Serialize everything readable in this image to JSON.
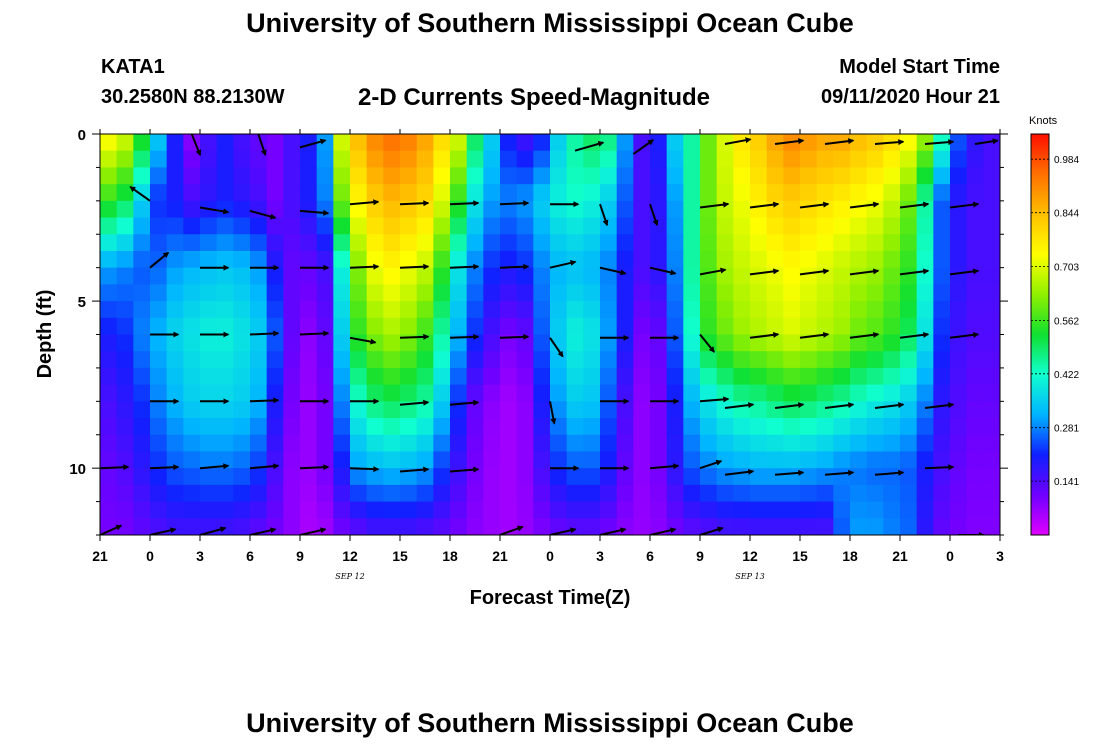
{
  "page": {
    "title": "University of Southern Mississippi Ocean Cube",
    "bottom_title": "University of Southern Mississippi Ocean Cube",
    "station": "KATA1",
    "coords": "30.2580N 88.2130W",
    "subtitle": "2-D Currents Speed-Magnitude",
    "model_start_label": "Model Start Time",
    "model_start_value": "09/11/2020 Hour 21"
  },
  "colors": {
    "ramp": [
      "#e000ff",
      "#7000ff",
      "#1020ff",
      "#00b4ff",
      "#10ffd0",
      "#10e030",
      "#90f000",
      "#ffff00",
      "#ffc000",
      "#ff7000",
      "#ff1000"
    ],
    "arrow": "#000000"
  },
  "chart_data": {
    "type": "heatmap",
    "title": "2-D Currents Speed-Magnitude",
    "xlabel": "Forecast Time(Z)",
    "ylabel": "Depth (ft)",
    "xlim": [
      0,
      54
    ],
    "ylim": [
      0,
      12
    ],
    "x_ticks": [
      {
        "x": 0,
        "label": "21"
      },
      {
        "x": 3,
        "label": "0"
      },
      {
        "x": 6,
        "label": "3"
      },
      {
        "x": 9,
        "label": "6"
      },
      {
        "x": 12,
        "label": "9"
      },
      {
        "x": 15,
        "label": "12"
      },
      {
        "x": 18,
        "label": "15"
      },
      {
        "x": 21,
        "label": "18"
      },
      {
        "x": 24,
        "label": "21"
      },
      {
        "x": 27,
        "label": "0"
      },
      {
        "x": 30,
        "label": "3"
      },
      {
        "x": 33,
        "label": "6"
      },
      {
        "x": 36,
        "label": "9"
      },
      {
        "x": 39,
        "label": "12"
      },
      {
        "x": 42,
        "label": "15"
      },
      {
        "x": 45,
        "label": "18"
      },
      {
        "x": 48,
        "label": "21"
      },
      {
        "x": 51,
        "label": "0"
      },
      {
        "x": 54,
        "label": "3"
      }
    ],
    "date_labels": [
      {
        "x": 15,
        "label": "SEP 12"
      },
      {
        "x": 39,
        "label": "SEP 13"
      }
    ],
    "y_ticks": [
      {
        "y": 0,
        "label": "0"
      },
      {
        "y": 5,
        "label": "5"
      },
      {
        "y": 10,
        "label": "10"
      }
    ],
    "colorbar": {
      "label": "Knots",
      "range": [
        0,
        1.05
      ],
      "ticks": [
        0.984,
        0.844,
        0.703,
        0.562,
        0.422,
        0.281,
        0.141
      ]
    },
    "depth_levels": [
      0,
      2,
      4,
      6,
      8,
      10,
      12
    ],
    "speed_profiles": {
      "hours": [
        0,
        1,
        2,
        3,
        4,
        5,
        6,
        7,
        8,
        9,
        10,
        11,
        12,
        13,
        14,
        15,
        16,
        17,
        18,
        19,
        20,
        21,
        22,
        23,
        24,
        25,
        26,
        27,
        28,
        29,
        30,
        31,
        32,
        33,
        34,
        35,
        36,
        37,
        38,
        39,
        40,
        41,
        42,
        43,
        44,
        45,
        46,
        47,
        48,
        49,
        50,
        51,
        52,
        53
      ],
      "knots_by_depth": [
        [
          0.75,
          0.7,
          0.55,
          0.35,
          0.2,
          0.08,
          0.15,
          0.2,
          0.15,
          0.12,
          0.1,
          0.15,
          0.2,
          0.3,
          0.7,
          0.85,
          0.92,
          0.95,
          0.93,
          0.88,
          0.8,
          0.7,
          0.5,
          0.35,
          0.2,
          0.15,
          0.2,
          0.35,
          0.45,
          0.5,
          0.48,
          0.3,
          0.15,
          0.2,
          0.35,
          0.45,
          0.6,
          0.7,
          0.78,
          0.82,
          0.88,
          0.92,
          0.9,
          0.88,
          0.88,
          0.85,
          0.83,
          0.8,
          0.75,
          0.65,
          0.45,
          0.25,
          0.18,
          0.15
        ],
        [
          0.55,
          0.5,
          0.35,
          0.22,
          0.2,
          0.15,
          0.18,
          0.2,
          0.18,
          0.15,
          0.1,
          0.15,
          0.2,
          0.28,
          0.6,
          0.75,
          0.82,
          0.85,
          0.83,
          0.8,
          0.7,
          0.55,
          0.38,
          0.3,
          0.28,
          0.3,
          0.35,
          0.4,
          0.42,
          0.4,
          0.35,
          0.25,
          0.15,
          0.18,
          0.3,
          0.45,
          0.6,
          0.68,
          0.72,
          0.76,
          0.8,
          0.82,
          0.8,
          0.78,
          0.76,
          0.74,
          0.72,
          0.68,
          0.6,
          0.45,
          0.25,
          0.18,
          0.15,
          0.15
        ],
        [
          0.3,
          0.28,
          0.25,
          0.26,
          0.3,
          0.32,
          0.33,
          0.34,
          0.33,
          0.3,
          0.2,
          0.12,
          0.12,
          0.15,
          0.4,
          0.62,
          0.72,
          0.75,
          0.72,
          0.68,
          0.55,
          0.38,
          0.28,
          0.22,
          0.2,
          0.22,
          0.28,
          0.32,
          0.33,
          0.32,
          0.28,
          0.2,
          0.15,
          0.18,
          0.28,
          0.45,
          0.58,
          0.65,
          0.68,
          0.7,
          0.72,
          0.74,
          0.72,
          0.7,
          0.68,
          0.66,
          0.64,
          0.6,
          0.55,
          0.42,
          0.25,
          0.18,
          0.15,
          0.15
        ],
        [
          0.2,
          0.22,
          0.28,
          0.32,
          0.36,
          0.38,
          0.4,
          0.4,
          0.38,
          0.35,
          0.25,
          0.12,
          0.08,
          0.12,
          0.35,
          0.55,
          0.62,
          0.65,
          0.62,
          0.56,
          0.45,
          0.32,
          0.22,
          0.15,
          0.1,
          0.12,
          0.25,
          0.35,
          0.4,
          0.38,
          0.3,
          0.2,
          0.1,
          0.12,
          0.25,
          0.42,
          0.55,
          0.6,
          0.64,
          0.66,
          0.68,
          0.7,
          0.68,
          0.66,
          0.64,
          0.6,
          0.58,
          0.55,
          0.5,
          0.38,
          0.22,
          0.16,
          0.14,
          0.14
        ],
        [
          0.15,
          0.18,
          0.22,
          0.28,
          0.32,
          0.35,
          0.36,
          0.36,
          0.35,
          0.32,
          0.2,
          0.1,
          0.07,
          0.1,
          0.28,
          0.42,
          0.48,
          0.5,
          0.48,
          0.45,
          0.35,
          0.22,
          0.12,
          0.08,
          0.06,
          0.08,
          0.2,
          0.3,
          0.35,
          0.34,
          0.25,
          0.15,
          0.08,
          0.1,
          0.2,
          0.32,
          0.38,
          0.42,
          0.45,
          0.46,
          0.48,
          0.5,
          0.49,
          0.47,
          0.45,
          0.42,
          0.4,
          0.38,
          0.35,
          0.28,
          0.18,
          0.14,
          0.12,
          0.12
        ],
        [
          0.12,
          0.14,
          0.18,
          0.22,
          0.25,
          0.26,
          0.27,
          0.27,
          0.26,
          0.23,
          0.15,
          0.08,
          0.07,
          0.1,
          0.2,
          0.3,
          0.32,
          0.33,
          0.32,
          0.3,
          0.23,
          0.16,
          0.1,
          0.07,
          0.06,
          0.08,
          0.15,
          0.22,
          0.25,
          0.25,
          0.2,
          0.12,
          0.08,
          0.1,
          0.18,
          0.25,
          0.28,
          0.3,
          0.31,
          0.32,
          0.32,
          0.32,
          0.31,
          0.3,
          0.28,
          0.27,
          0.26,
          0.26,
          0.25,
          0.2,
          0.15,
          0.12,
          0.1,
          0.1
        ],
        [
          0.1,
          0.1,
          0.12,
          0.14,
          0.15,
          0.15,
          0.15,
          0.15,
          0.14,
          0.12,
          0.1,
          0.08,
          0.05,
          0.06,
          0.1,
          0.12,
          0.14,
          0.14,
          0.14,
          0.13,
          0.12,
          0.1,
          0.08,
          0.07,
          0.06,
          0.07,
          0.09,
          0.11,
          0.12,
          0.12,
          0.1,
          0.08,
          0.07,
          0.08,
          0.1,
          0.12,
          0.13,
          0.14,
          0.14,
          0.14,
          0.14,
          0.14,
          0.14,
          0.14,
          0.25,
          0.3,
          0.3,
          0.28,
          0.26,
          0.18,
          0.12,
          0.1,
          0.09,
          0.09
        ]
      ]
    },
    "vectors": [
      {
        "x": 5.5,
        "y": 0.0,
        "dx": 0.6,
        "dy": 1.8
      },
      {
        "x": 9.5,
        "y": 0.0,
        "dx": 0.5,
        "dy": 1.8
      },
      {
        "x": 12.0,
        "y": 0.4,
        "dx": 1.8,
        "dy": -0.6
      },
      {
        "x": 28.5,
        "y": 0.5,
        "dx": 2.0,
        "dy": -0.7
      },
      {
        "x": 32.0,
        "y": 0.6,
        "dx": 1.4,
        "dy": -1.2
      },
      {
        "x": 37.5,
        "y": 0.3,
        "dx": 1.8,
        "dy": -0.4
      },
      {
        "x": 40.5,
        "y": 0.3,
        "dx": 2.0,
        "dy": -0.3
      },
      {
        "x": 43.5,
        "y": 0.3,
        "dx": 2.0,
        "dy": -0.3
      },
      {
        "x": 46.5,
        "y": 0.3,
        "dx": 2.0,
        "dy": -0.2
      },
      {
        "x": 49.5,
        "y": 0.3,
        "dx": 2.0,
        "dy": -0.2
      },
      {
        "x": 52.5,
        "y": 0.3,
        "dx": 1.6,
        "dy": -0.3
      },
      {
        "x": 3.0,
        "y": 2.0,
        "dx": -1.4,
        "dy": -1.2
      },
      {
        "x": 6.0,
        "y": 2.2,
        "dx": 2.0,
        "dy": 0.4
      },
      {
        "x": 9.0,
        "y": 2.3,
        "dx": 1.8,
        "dy": 0.6
      },
      {
        "x": 12.0,
        "y": 2.3,
        "dx": 2.0,
        "dy": 0.2
      },
      {
        "x": 15.0,
        "y": 2.1,
        "dx": 2.0,
        "dy": -0.2
      },
      {
        "x": 18.0,
        "y": 2.1,
        "dx": 2.0,
        "dy": -0.1
      },
      {
        "x": 21.0,
        "y": 2.1,
        "dx": 2.0,
        "dy": -0.1
      },
      {
        "x": 24.0,
        "y": 2.1,
        "dx": 2.0,
        "dy": -0.1
      },
      {
        "x": 27.0,
        "y": 2.1,
        "dx": 2.0,
        "dy": 0.0
      },
      {
        "x": 30.0,
        "y": 2.1,
        "dx": 0.5,
        "dy": 1.8
      },
      {
        "x": 33.0,
        "y": 2.1,
        "dx": 0.5,
        "dy": 1.8
      },
      {
        "x": 36.0,
        "y": 2.2,
        "dx": 2.0,
        "dy": -0.3
      },
      {
        "x": 39.0,
        "y": 2.2,
        "dx": 2.0,
        "dy": -0.3
      },
      {
        "x": 42.0,
        "y": 2.2,
        "dx": 2.0,
        "dy": -0.3
      },
      {
        "x": 45.0,
        "y": 2.2,
        "dx": 2.0,
        "dy": -0.3
      },
      {
        "x": 48.0,
        "y": 2.2,
        "dx": 2.0,
        "dy": -0.3
      },
      {
        "x": 51.0,
        "y": 2.2,
        "dx": 2.0,
        "dy": -0.3
      },
      {
        "x": 3.0,
        "y": 4.0,
        "dx": 1.3,
        "dy": -1.3
      },
      {
        "x": 6.0,
        "y": 4.0,
        "dx": 2.0,
        "dy": 0.0
      },
      {
        "x": 9.0,
        "y": 4.0,
        "dx": 2.0,
        "dy": 0.0
      },
      {
        "x": 12.0,
        "y": 4.0,
        "dx": 2.0,
        "dy": 0.0
      },
      {
        "x": 15.0,
        "y": 4.0,
        "dx": 2.0,
        "dy": -0.1
      },
      {
        "x": 18.0,
        "y": 4.0,
        "dx": 2.0,
        "dy": -0.1
      },
      {
        "x": 21.0,
        "y": 4.0,
        "dx": 2.0,
        "dy": -0.1
      },
      {
        "x": 24.0,
        "y": 4.0,
        "dx": 2.0,
        "dy": -0.1
      },
      {
        "x": 27.0,
        "y": 4.0,
        "dx": 1.8,
        "dy": -0.5
      },
      {
        "x": 30.0,
        "y": 4.0,
        "dx": 1.8,
        "dy": 0.5
      },
      {
        "x": 33.0,
        "y": 4.0,
        "dx": 1.8,
        "dy": 0.5
      },
      {
        "x": 36.0,
        "y": 4.2,
        "dx": 1.8,
        "dy": -0.4
      },
      {
        "x": 39.0,
        "y": 4.2,
        "dx": 2.0,
        "dy": -0.3
      },
      {
        "x": 42.0,
        "y": 4.2,
        "dx": 2.0,
        "dy": -0.3
      },
      {
        "x": 45.0,
        "y": 4.2,
        "dx": 2.0,
        "dy": -0.3
      },
      {
        "x": 48.0,
        "y": 4.2,
        "dx": 2.0,
        "dy": -0.3
      },
      {
        "x": 51.0,
        "y": 4.2,
        "dx": 2.0,
        "dy": -0.3
      },
      {
        "x": 3.0,
        "y": 6.0,
        "dx": 2.0,
        "dy": 0.0
      },
      {
        "x": 6.0,
        "y": 6.0,
        "dx": 2.0,
        "dy": 0.0
      },
      {
        "x": 9.0,
        "y": 6.0,
        "dx": 2.0,
        "dy": -0.1
      },
      {
        "x": 12.0,
        "y": 6.0,
        "dx": 2.0,
        "dy": -0.1
      },
      {
        "x": 15.0,
        "y": 6.1,
        "dx": 1.8,
        "dy": 0.4
      },
      {
        "x": 18.0,
        "y": 6.1,
        "dx": 2.0,
        "dy": -0.1
      },
      {
        "x": 21.0,
        "y": 6.1,
        "dx": 2.0,
        "dy": -0.1
      },
      {
        "x": 24.0,
        "y": 6.1,
        "dx": 2.0,
        "dy": -0.1
      },
      {
        "x": 27.0,
        "y": 6.1,
        "dx": 0.9,
        "dy": 1.6
      },
      {
        "x": 30.0,
        "y": 6.1,
        "dx": 2.0,
        "dy": 0.0
      },
      {
        "x": 33.0,
        "y": 6.1,
        "dx": 2.0,
        "dy": 0.0
      },
      {
        "x": 36.0,
        "y": 6.0,
        "dx": 1.0,
        "dy": 1.5
      },
      {
        "x": 39.0,
        "y": 6.1,
        "dx": 2.0,
        "dy": -0.3
      },
      {
        "x": 42.0,
        "y": 6.1,
        "dx": 2.0,
        "dy": -0.3
      },
      {
        "x": 45.0,
        "y": 6.1,
        "dx": 2.0,
        "dy": -0.3
      },
      {
        "x": 48.0,
        "y": 6.1,
        "dx": 2.0,
        "dy": -0.3
      },
      {
        "x": 51.0,
        "y": 6.1,
        "dx": 2.0,
        "dy": -0.3
      },
      {
        "x": 3.0,
        "y": 8.0,
        "dx": 2.0,
        "dy": 0.0
      },
      {
        "x": 6.0,
        "y": 8.0,
        "dx": 2.0,
        "dy": 0.0
      },
      {
        "x": 9.0,
        "y": 8.0,
        "dx": 2.0,
        "dy": -0.1
      },
      {
        "x": 12.0,
        "y": 8.0,
        "dx": 2.0,
        "dy": 0.0
      },
      {
        "x": 15.0,
        "y": 8.0,
        "dx": 2.0,
        "dy": 0.0
      },
      {
        "x": 18.0,
        "y": 8.1,
        "dx": 2.0,
        "dy": -0.2
      },
      {
        "x": 21.0,
        "y": 8.1,
        "dx": 2.0,
        "dy": -0.2
      },
      {
        "x": 27.0,
        "y": 8.0,
        "dx": 0.3,
        "dy": 1.9
      },
      {
        "x": 30.0,
        "y": 8.0,
        "dx": 2.0,
        "dy": 0.0
      },
      {
        "x": 33.0,
        "y": 8.0,
        "dx": 2.0,
        "dy": 0.0
      },
      {
        "x": 36.0,
        "y": 8.0,
        "dx": 2.0,
        "dy": -0.2
      },
      {
        "x": 37.5,
        "y": 8.2,
        "dx": 2.0,
        "dy": -0.3
      },
      {
        "x": 40.5,
        "y": 8.2,
        "dx": 2.0,
        "dy": -0.3
      },
      {
        "x": 43.5,
        "y": 8.2,
        "dx": 2.0,
        "dy": -0.3
      },
      {
        "x": 46.5,
        "y": 8.2,
        "dx": 2.0,
        "dy": -0.3
      },
      {
        "x": 49.5,
        "y": 8.2,
        "dx": 2.0,
        "dy": -0.3
      },
      {
        "x": 0.0,
        "y": 10.0,
        "dx": 2.0,
        "dy": -0.1
      },
      {
        "x": 3.0,
        "y": 10.0,
        "dx": 2.0,
        "dy": -0.1
      },
      {
        "x": 6.0,
        "y": 10.0,
        "dx": 2.0,
        "dy": -0.2
      },
      {
        "x": 9.0,
        "y": 10.0,
        "dx": 2.0,
        "dy": -0.2
      },
      {
        "x": 12.0,
        "y": 10.0,
        "dx": 2.0,
        "dy": -0.1
      },
      {
        "x": 15.0,
        "y": 10.0,
        "dx": 2.0,
        "dy": 0.1
      },
      {
        "x": 18.0,
        "y": 10.1,
        "dx": 2.0,
        "dy": -0.2
      },
      {
        "x": 21.0,
        "y": 10.1,
        "dx": 2.0,
        "dy": -0.2
      },
      {
        "x": 27.0,
        "y": 10.0,
        "dx": 2.0,
        "dy": 0.0
      },
      {
        "x": 30.0,
        "y": 10.0,
        "dx": 2.0,
        "dy": 0.0
      },
      {
        "x": 33.0,
        "y": 10.0,
        "dx": 2.0,
        "dy": -0.2
      },
      {
        "x": 36.0,
        "y": 10.0,
        "dx": 1.5,
        "dy": -0.6
      },
      {
        "x": 37.5,
        "y": 10.2,
        "dx": 2.0,
        "dy": -0.3
      },
      {
        "x": 40.5,
        "y": 10.2,
        "dx": 2.0,
        "dy": -0.2
      },
      {
        "x": 43.5,
        "y": 10.2,
        "dx": 2.0,
        "dy": -0.2
      },
      {
        "x": 46.5,
        "y": 10.2,
        "dx": 2.0,
        "dy": -0.2
      },
      {
        "x": 49.5,
        "y": 10.0,
        "dx": 2.0,
        "dy": -0.1
      },
      {
        "x": 0.0,
        "y": 12.0,
        "dx": 1.5,
        "dy": -0.8
      },
      {
        "x": 3.0,
        "y": 12.0,
        "dx": 1.8,
        "dy": -0.5
      },
      {
        "x": 6.0,
        "y": 12.0,
        "dx": 1.8,
        "dy": -0.6
      },
      {
        "x": 9.0,
        "y": 12.0,
        "dx": 1.8,
        "dy": -0.5
      },
      {
        "x": 12.0,
        "y": 12.0,
        "dx": 1.8,
        "dy": -0.5
      },
      {
        "x": 24.0,
        "y": 12.0,
        "dx": 1.6,
        "dy": -0.7
      },
      {
        "x": 27.0,
        "y": 12.0,
        "dx": 1.8,
        "dy": -0.5
      },
      {
        "x": 30.0,
        "y": 12.0,
        "dx": 1.8,
        "dy": -0.5
      },
      {
        "x": 33.0,
        "y": 12.0,
        "dx": 1.8,
        "dy": -0.5
      },
      {
        "x": 36.0,
        "y": 12.0,
        "dx": 1.6,
        "dy": -0.6
      },
      {
        "x": 51.5,
        "y": 12.0,
        "dx": 1.8,
        "dy": 0.0
      }
    ]
  }
}
